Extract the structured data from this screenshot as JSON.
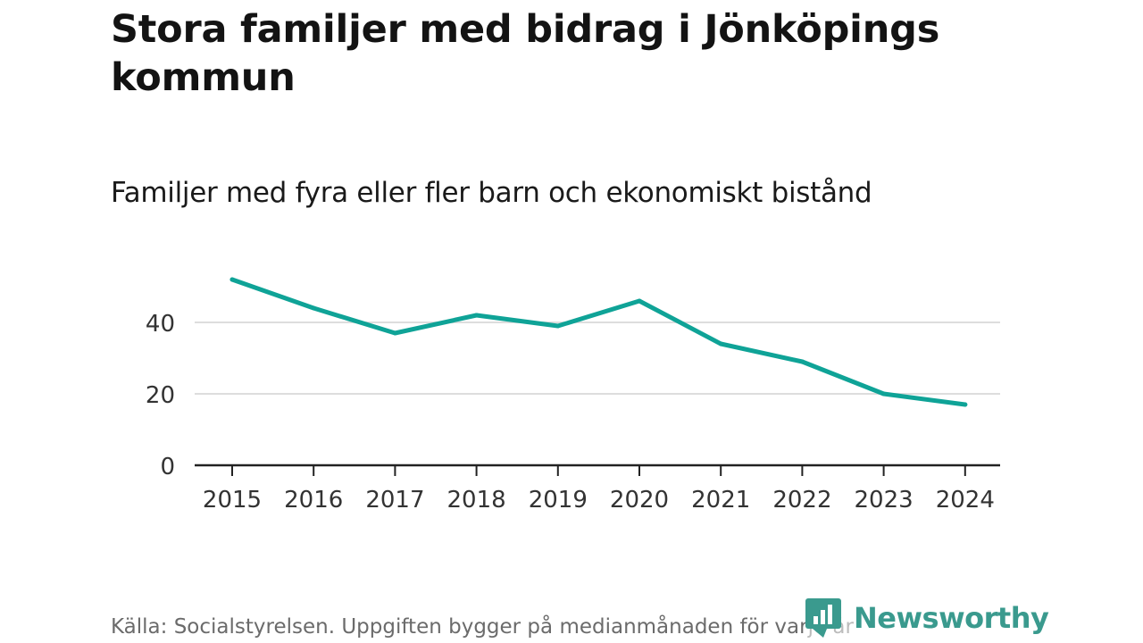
{
  "title": "Stora familjer med bidrag i Jönköpings kommun",
  "source": "Källa: Socialstyrelsen. Uppgiften bygger på medianmånaden för varje år",
  "logo": {
    "text": "Newsworthy",
    "icon": "newsworthy-logo-icon"
  },
  "colors": {
    "line": "#0fa397",
    "grid": "#dddddd",
    "axis": "#222222",
    "logo": "#3a9a8e"
  },
  "chart_data": {
    "type": "line",
    "title": "Familjer med fyra eller fler barn och ekonomiskt bistånd",
    "xlabel": "",
    "ylabel": "",
    "x": [
      "2015",
      "2016",
      "2017",
      "2018",
      "2019",
      "2020",
      "2021",
      "2022",
      "2023",
      "2024"
    ],
    "series": [
      {
        "name": "Familjer med fyra eller fler barn och ekonomiskt bistånd",
        "values": [
          52,
          44,
          37,
          42,
          39,
          46,
          34,
          29,
          20,
          17
        ]
      }
    ],
    "ylim": [
      0,
      57
    ],
    "yticks": [
      "0",
      "20",
      "40"
    ],
    "ytick_values": [
      0,
      20,
      40
    ],
    "grid": true,
    "legend": "none"
  }
}
